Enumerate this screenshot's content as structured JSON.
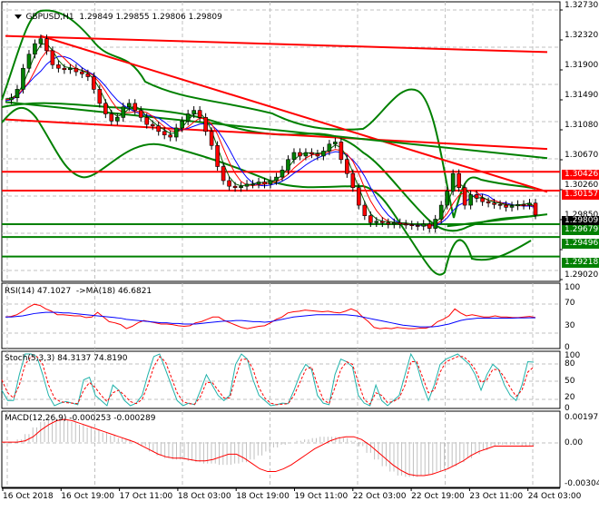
{
  "main": {
    "symbol_label": "GBPUSD,H1",
    "ohlc": "1.29849 1.29855 1.29806 1.29809",
    "price_axis": [
      "1.32730",
      "1.32320",
      "1.31900",
      "1.31490",
      "1.31080",
      "1.30670",
      "1.30260",
      "1.29850",
      "1.29430",
      "1.29020"
    ],
    "price_tags": [
      {
        "value": "1.30426",
        "color": "#ff0000"
      },
      {
        "value": "1.30157",
        "color": "#ff0000"
      },
      {
        "value": "1.29809",
        "color": "#000000"
      },
      {
        "value": "1.29679",
        "color": "#008000"
      },
      {
        "value": "1.29496",
        "color": "#008000"
      },
      {
        "value": "1.29218",
        "color": "#008000"
      }
    ]
  },
  "rsi": {
    "label": "RSI(14) 47.1027  ->MA(18) 46.6821",
    "axis": [
      "100",
      "70",
      "30",
      "0"
    ]
  },
  "stoch": {
    "label": "Stoch(5,3,3) 84.3137 74.8190",
    "axis": [
      "100",
      "80",
      "50",
      "20",
      "0"
    ]
  },
  "macd": {
    "label": "MACD(12,26,9) -0.000253 -0.000289",
    "axis": [
      "0.001973",
      "0.00",
      "-0.003044"
    ]
  },
  "time_axis": [
    "16 Oct 2018",
    "16 Oct 19:00",
    "17 Oct 11:00",
    "18 Oct 03:00",
    "18 Oct 19:00",
    "19 Oct 11:00",
    "22 Oct 03:00",
    "22 Oct 19:00",
    "23 Oct 11:00",
    "24 Oct 03:00"
  ],
  "colors": {
    "bull_candle": "#008000",
    "bear_candle": "#ff0000",
    "resistance": "#ff0000",
    "support": "#008000",
    "rsi_line": "#ff0000",
    "rsi_ma": "#0000ff",
    "stoch_main": "#20b2aa",
    "stoch_signal": "#ff0000",
    "macd_hist": "#c0c0c0",
    "macd_signal": "#ff0000",
    "grid": "#c0c0c0"
  },
  "chart_data": [
    {
      "type": "candlestick",
      "title": "GBPUSD,H1",
      "ohlc_last": {
        "open": 1.29849,
        "high": 1.29855,
        "low": 1.29806,
        "close": 1.29809
      },
      "ylim": [
        1.2902,
        1.3273
      ],
      "x_ticks": [
        "16 Oct 2018",
        "16 Oct 19:00",
        "17 Oct 11:00",
        "18 Oct 03:00",
        "18 Oct 19:00",
        "19 Oct 11:00",
        "22 Oct 03:00",
        "22 Oct 19:00",
        "23 Oct 11:00",
        "24 Oct 03:00"
      ],
      "y_ticks": [
        1.3273,
        1.3232,
        1.319,
        1.3149,
        1.3108,
        1.3067,
        1.3026,
        1.2985,
        1.2943,
        1.2902
      ],
      "close_path": [
        1.3145,
        1.3148,
        1.316,
        1.319,
        1.321,
        1.3225,
        1.3232,
        1.3215,
        1.3195,
        1.319,
        1.3188,
        1.319,
        1.3185,
        1.3182,
        1.3178,
        1.316,
        1.314,
        1.3125,
        1.3115,
        1.312,
        1.3135,
        1.314,
        1.313,
        1.312,
        1.311,
        1.3108,
        1.31,
        1.3095,
        1.3092,
        1.3105,
        1.3115,
        1.3125,
        1.313,
        1.312,
        1.31,
        1.308,
        1.305,
        1.303,
        1.3022,
        1.302,
        1.3022,
        1.3025,
        1.3025,
        1.3028,
        1.3025,
        1.303,
        1.3035,
        1.3045,
        1.306,
        1.307,
        1.3065,
        1.307,
        1.3068,
        1.3065,
        1.3072,
        1.3082,
        1.3085,
        1.306,
        1.304,
        1.302,
        1.2995,
        1.298,
        1.297,
        1.2972,
        1.297,
        1.2968,
        1.297,
        1.2968,
        1.2967,
        1.2966,
        1.2965,
        1.2968,
        1.2962,
        1.2975,
        1.2995,
        1.3015,
        1.304,
        1.302,
        1.2995,
        1.301,
        1.3005,
        1.3,
        1.2998,
        1.2996,
        1.2995,
        1.2992,
        1.2994,
        1.2996,
        1.2995,
        1.2998,
        1.2981
      ],
      "horizontal_levels": [
        {
          "price": 1.30426,
          "color": "red"
        },
        {
          "price": 1.30157,
          "color": "red"
        },
        {
          "price": 1.29679,
          "color": "green"
        },
        {
          "price": 1.29496,
          "color": "green"
        },
        {
          "price": 1.29218,
          "color": "green"
        }
      ],
      "trendlines": [
        {
          "from": [
            0,
            1.3236
          ],
          "to": [
            92,
            1.3213
          ],
          "color": "red"
        },
        {
          "from": [
            6,
            1.3236
          ],
          "to": [
            92,
            1.3014
          ],
          "color": "red"
        },
        {
          "from": [
            0,
            1.3117
          ],
          "to": [
            92,
            1.3075
          ],
          "color": "red"
        },
        {
          "from": [
            0,
            1.3142
          ],
          "to": [
            92,
            1.3062
          ],
          "color": "green"
        },
        {
          "from": [
            75,
            1.2965
          ],
          "to": [
            92,
            1.2982
          ],
          "color": "green"
        }
      ],
      "indicators": [
        "Bollinger Bands (green)",
        "Moving averages (red, blue, dark green)"
      ]
    },
    {
      "type": "line",
      "title": "RSI(14) 47.1027 ->MA(18) 46.6821",
      "ylim": [
        0,
        100
      ],
      "y_ticks": [
        100,
        70,
        30,
        0
      ],
      "series": [
        {
          "name": "RSI(14)",
          "color": "#ff0000",
          "values": [
            48,
            49,
            52,
            58,
            65,
            70,
            68,
            62,
            58,
            52,
            52,
            51,
            50,
            50,
            47,
            48,
            56,
            48,
            40,
            38,
            35,
            28,
            32,
            38,
            42,
            40,
            38,
            36,
            36,
            35,
            33,
            32,
            33,
            38,
            40,
            44,
            48,
            48,
            42,
            38,
            34,
            30,
            28,
            30,
            32,
            33,
            38,
            44,
            48,
            55,
            57,
            58,
            60,
            59,
            58,
            57,
            58,
            56,
            55,
            58,
            62,
            58,
            48,
            40,
            30,
            28,
            29,
            28,
            30,
            29,
            28,
            28,
            29,
            29,
            32,
            40,
            44,
            50,
            62,
            55,
            50,
            52,
            50,
            48,
            48,
            50,
            48,
            48,
            47,
            47,
            48,
            49,
            47.1
          ]
        },
        {
          "name": "MA(18)",
          "color": "#0000ff",
          "values": [
            48,
            48,
            49,
            50,
            52,
            54,
            55,
            56,
            56,
            56,
            55,
            55,
            54,
            53,
            52,
            51,
            50,
            49,
            48,
            47,
            46,
            44,
            43,
            42,
            41,
            40,
            39,
            38,
            38,
            37,
            37,
            36,
            36,
            36,
            37,
            38,
            39,
            40,
            41,
            41,
            42,
            42,
            41,
            40,
            40,
            39,
            40,
            42,
            44,
            46,
            48,
            49,
            50,
            51,
            52,
            52,
            52,
            52,
            52,
            52,
            51,
            50,
            48,
            46,
            44,
            42,
            40,
            38,
            36,
            34,
            33,
            32,
            31,
            31,
            31,
            32,
            34,
            36,
            39,
            42,
            44,
            45,
            46,
            46,
            46,
            46,
            46,
            46,
            46,
            46.5,
            46.5,
            46.7,
            46.68
          ]
        }
      ]
    },
    {
      "type": "line",
      "title": "Stoch(5,3,3) 84.3137 74.8190",
      "ylim": [
        0,
        100
      ],
      "y_ticks": [
        100,
        80,
        50,
        20,
        0
      ],
      "series": [
        {
          "name": "%K",
          "color": "#20b2aa",
          "values": [
            30,
            10,
            10,
            60,
            100,
            100,
            95,
            60,
            20,
            0,
            5,
            8,
            5,
            2,
            50,
            55,
            20,
            10,
            0,
            40,
            30,
            10,
            0,
            5,
            20,
            60,
            95,
            100,
            70,
            40,
            10,
            0,
            5,
            2,
            30,
            60,
            40,
            20,
            10,
            20,
            80,
            100,
            90,
            50,
            20,
            10,
            0,
            2,
            5,
            4,
            30,
            60,
            80,
            70,
            20,
            5,
            2,
            60,
            90,
            85,
            75,
            20,
            5,
            0,
            40,
            10,
            0,
            10,
            20,
            60,
            100,
            80,
            40,
            10,
            40,
            80,
            90,
            95,
            100,
            90,
            80,
            60,
            30,
            60,
            80,
            70,
            40,
            20,
            10,
            40,
            85,
            84.3
          ]
        },
        {
          "name": "%D",
          "color": "#ff0000",
          "values": [
            50,
            25,
            15,
            40,
            80,
            95,
            95,
            80,
            40,
            15,
            8,
            6,
            5,
            4,
            30,
            45,
            35,
            20,
            8,
            25,
            30,
            20,
            8,
            4,
            12,
            40,
            75,
            95,
            85,
            55,
            25,
            8,
            4,
            3,
            18,
            45,
            45,
            30,
            15,
            15,
            55,
            90,
            90,
            70,
            35,
            15,
            5,
            2,
            3,
            4,
            20,
            45,
            70,
            75,
            40,
            12,
            4,
            35,
            70,
            85,
            80,
            45,
            12,
            3,
            25,
            20,
            6,
            8,
            15,
            40,
            85,
            85,
            55,
            25,
            30,
            65,
            85,
            90,
            95,
            95,
            85,
            70,
            45,
            50,
            70,
            70,
            55,
            35,
            18,
            30,
            65,
            74.8
          ]
        }
      ]
    },
    {
      "type": "bar",
      "title": "MACD(12,26,9) -0.000253 -0.000289",
      "ylim": [
        -0.003044,
        0.001973
      ],
      "y_ticks": [
        0.001973,
        0.0,
        -0.003044
      ],
      "series": [
        {
          "name": "MACD histogram",
          "color": "#c0c0c0",
          "values": [
            0,
            0,
            0.0002,
            0.0006,
            0.0011,
            0.0015,
            0.0017,
            0.0018,
            0.0017,
            0.0015,
            0.0013,
            0.0011,
            0.0009,
            0.0007,
            0.0005,
            0.0003,
            0.0002,
            0,
            -0.0003,
            -0.0007,
            -0.001,
            -0.0012,
            -0.0013,
            -0.0013,
            -0.0014,
            -0.0015,
            -0.0016,
            -0.0016,
            -0.0017,
            -0.0017,
            -0.0016,
            -0.0015,
            -0.0013,
            -0.001,
            -0.0007,
            -0.0004,
            -0.0002,
            0,
            0.0001,
            0.0002,
            0.0003,
            0.0004,
            0.0004,
            0.0004,
            0.0003,
            0.0001,
            -0.0003,
            -0.0008,
            -0.0013,
            -0.0018,
            -0.0022,
            -0.0025,
            -0.0026,
            -0.0026,
            -0.0025,
            -0.0024,
            -0.0022,
            -0.002,
            -0.0018,
            -0.0015,
            -0.0012,
            -0.0009,
            -0.0006,
            -0.0003,
            -0.0002,
            -0.0002,
            -0.0002,
            -0.0003,
            -0.00025
          ]
        },
        {
          "name": "Signal",
          "color": "#ff0000",
          "values": [
            0,
            0,
            0,
            0.0001,
            0.0004,
            0.0009,
            0.0013,
            0.0016,
            0.0017,
            0.0016,
            0.0014,
            0.0012,
            0.001,
            0.0008,
            0.0006,
            0.0004,
            0.0002,
            0,
            -0.0003,
            -0.0006,
            -0.0009,
            -0.0011,
            -0.0012,
            -0.0012,
            -0.0013,
            -0.0014,
            -0.0014,
            -0.0013,
            -0.0011,
            -0.0009,
            -0.0009,
            -0.0012,
            -0.0016,
            -0.002,
            -0.0022,
            -0.0022,
            -0.002,
            -0.0017,
            -0.0013,
            -0.0009,
            -0.0005,
            -0.0002,
            0.0001,
            0.0003,
            0.0004,
            0.0004,
            0.0002,
            -0.0002,
            -0.0007,
            -0.0012,
            -0.0017,
            -0.0021,
            -0.0024,
            -0.0025,
            -0.0025,
            -0.0024,
            -0.0022,
            -0.002,
            -0.0017,
            -0.0014,
            -0.001,
            -0.0007,
            -0.0005,
            -0.0003,
            -0.0003,
            -0.0003,
            -0.0003,
            -0.0003,
            -0.00029
          ]
        }
      ]
    }
  ]
}
